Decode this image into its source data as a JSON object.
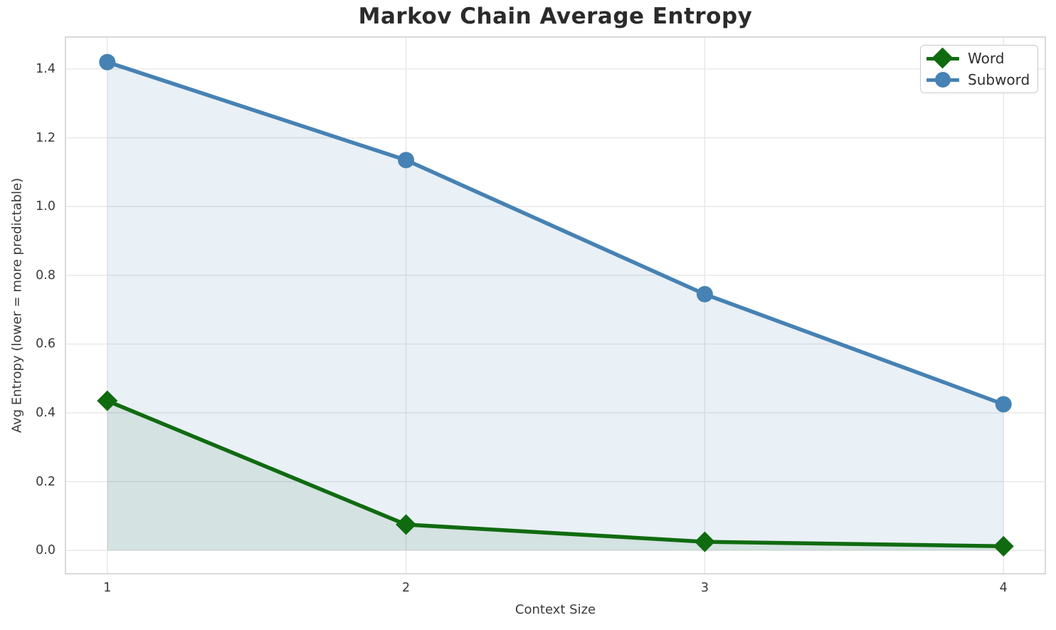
{
  "chart_data": {
    "type": "line",
    "title": "Markov Chain Average Entropy",
    "xlabel": "Context Size",
    "ylabel": "Avg Entropy (lower = more predictable)",
    "x": [
      1,
      2,
      3,
      4
    ],
    "series": [
      {
        "name": "Word",
        "values": [
          0.435,
          0.075,
          0.025,
          0.012
        ],
        "color": "#106b10",
        "marker": "diamond",
        "fill_to_zero": true,
        "fill_opacity": 0.1
      },
      {
        "name": "Subword",
        "values": [
          1.42,
          1.135,
          0.745,
          0.425
        ],
        "color": "#4682b4",
        "marker": "circle",
        "fill_to_zero": true,
        "fill_opacity": 0.12
      }
    ],
    "xlim": [
      0.86,
      4.14
    ],
    "ylim": [
      -0.068,
      1.493
    ],
    "xticks": [
      1,
      2,
      3,
      4
    ],
    "xtick_labels": [
      "1",
      "2",
      "3",
      "4"
    ],
    "yticks": [
      0.0,
      0.2,
      0.4,
      0.6,
      0.8,
      1.0,
      1.2,
      1.4
    ],
    "ytick_labels": [
      "0.0",
      "0.2",
      "0.4",
      "0.6",
      "0.8",
      "1.0",
      "1.2",
      "1.4"
    ],
    "grid": true,
    "legend_position": "upper right",
    "colors": {
      "grid": "#e7e7e7",
      "spine": "#d0d0d0",
      "title_text": "#2b2b2b",
      "label_text": "#3a3a3a"
    }
  }
}
